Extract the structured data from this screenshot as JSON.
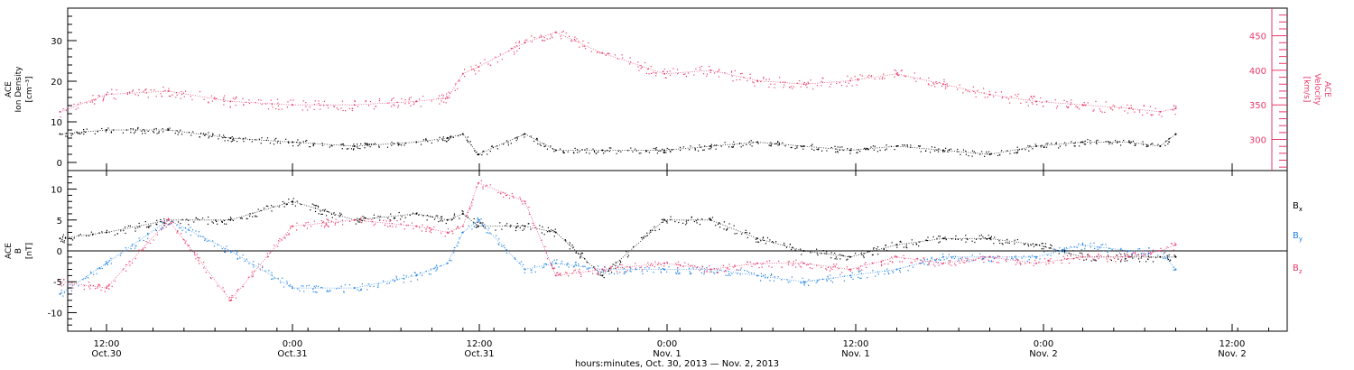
{
  "chart_data": [
    {
      "type": "scatter",
      "panel": "top",
      "ylabel_left": [
        "ACE",
        "Ion Density",
        "[cm⁻³]"
      ],
      "ylabel_right": [
        "ACE",
        "Velocity",
        "[km/s]"
      ],
      "ylim_left": [
        -2,
        38
      ],
      "yticks_left": [
        0,
        10,
        20,
        30
      ],
      "ylim_right": [
        255,
        490
      ],
      "yticks_right": [
        300,
        350,
        400,
        450
      ],
      "x": [
        "Oct.30 09:00",
        "Oct.30 12:00",
        "Oct.30 16:00",
        "Oct.30 20:00",
        "Oct.31 00:00",
        "Oct.31 04:00",
        "Oct.31 08:00",
        "Oct.31 10:00",
        "Oct.31 11:00",
        "Oct.31 12:00",
        "Oct.31 15:00",
        "Oct.31 17:00",
        "Oct.31 20:00",
        "Nov.1 00:00",
        "Nov.1 03:00",
        "Nov.1 06:00",
        "Nov.1 09:00",
        "Nov.1 12:00",
        "Nov.1 15:00",
        "Nov.1 18:00",
        "Nov.1 21:00",
        "Nov.2 00:00",
        "Nov.2 03:00",
        "Nov.2 06:00",
        "Nov.2 08:00",
        "Nov.2 09:00"
      ],
      "series": [
        {
          "name": "Ion Density",
          "axis": "left",
          "color": "#000000",
          "values": [
            7,
            8,
            8,
            6,
            5,
            4,
            5,
            6,
            7,
            2,
            7,
            3,
            3,
            3,
            4,
            5,
            4,
            3,
            4,
            3,
            2,
            4,
            5,
            5,
            4,
            7
          ]
        },
        {
          "name": "Velocity",
          "axis": "right",
          "color": "#e8386a",
          "values": [
            340,
            365,
            370,
            355,
            350,
            350,
            355,
            360,
            395,
            405,
            440,
            455,
            425,
            395,
            400,
            385,
            380,
            385,
            395,
            380,
            365,
            355,
            350,
            345,
            340,
            345
          ]
        }
      ]
    },
    {
      "type": "scatter",
      "panel": "bottom",
      "ylabel_left": [
        "ACE",
        "B",
        "[nT]"
      ],
      "ylim": [
        -13,
        13
      ],
      "yticks": [
        -10,
        -5,
        0,
        5,
        10
      ],
      "x": [
        "Oct.30 09:00",
        "Oct.30 12:00",
        "Oct.30 16:00",
        "Oct.30 20:00",
        "Oct.31 00:00",
        "Oct.31 04:00",
        "Oct.31 08:00",
        "Oct.31 10:00",
        "Oct.31 11:00",
        "Oct.31 12:00",
        "Oct.31 15:00",
        "Oct.31 17:00",
        "Oct.31 20:00",
        "Nov.1 00:00",
        "Nov.1 03:00",
        "Nov.1 06:00",
        "Nov.1 09:00",
        "Nov.1 12:00",
        "Nov.1 15:00",
        "Nov.1 18:00",
        "Nov.1 21:00",
        "Nov.2 00:00",
        "Nov.2 03:00",
        "Nov.2 06:00",
        "Nov.2 08:00",
        "Nov.2 09:00"
      ],
      "series": [
        {
          "name": "B",
          "sub": "x",
          "color": "#000000",
          "values": [
            2,
            3,
            5,
            5,
            8,
            5,
            6,
            5,
            6,
            4,
            4,
            3,
            -4,
            5,
            5,
            2,
            0,
            -1,
            1,
            2,
            2,
            1,
            -1,
            -1,
            -1,
            -1
          ]
        },
        {
          "name": "B",
          "sub": "y",
          "color": "#1f82e6",
          "values": [
            -7,
            -2,
            5,
            0,
            -6,
            -6,
            -4,
            -2,
            3,
            5,
            -3,
            -2,
            -3,
            -3,
            -3,
            -4,
            -5,
            -4,
            -3,
            -1,
            -1,
            -1,
            1,
            0,
            0,
            -3
          ]
        },
        {
          "name": "B",
          "sub": "z",
          "color": "#e8386a",
          "values": [
            -5,
            -6,
            5,
            -8,
            4,
            5,
            4,
            3,
            4,
            11,
            8,
            -4,
            -3,
            -2,
            -3,
            -2,
            -2,
            -3,
            -1,
            -2,
            -1,
            -2,
            -1,
            -1,
            0,
            1
          ]
        }
      ]
    }
  ],
  "xaxis": {
    "ticks": [
      {
        "t": "12:00",
        "d": "Oct.30"
      },
      {
        "t": "0:00",
        "d": "Oct.31"
      },
      {
        "t": "12:00",
        "d": "Oct.31"
      },
      {
        "t": "0:00",
        "d": "Nov. 1"
      },
      {
        "t": "12:00",
        "d": "Nov. 1"
      },
      {
        "t": "0:00",
        "d": "Nov. 2"
      },
      {
        "t": "12:00",
        "d": "Nov. 2"
      }
    ],
    "label": "hours:minutes, Oct. 30, 2013 — Nov.  2, 2013"
  }
}
